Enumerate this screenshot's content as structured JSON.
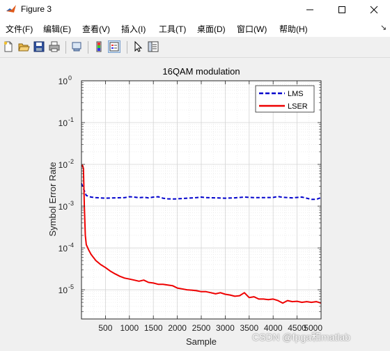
{
  "window": {
    "title": "Figure 3"
  },
  "menu": [
    {
      "label": "文件(F)"
    },
    {
      "label": "编辑(E)"
    },
    {
      "label": "查看(V)"
    },
    {
      "label": "插入(I)"
    },
    {
      "label": "工具(T)"
    },
    {
      "label": "桌面(D)"
    },
    {
      "label": "窗口(W)"
    },
    {
      "label": "帮助(H)"
    }
  ],
  "toolbar": {
    "icons": [
      "new-figure-icon",
      "open-file-icon",
      "save-icon",
      "print-icon",
      "link-icon",
      "colorbar-icon",
      "legend-icon",
      "pointer-icon",
      "property-editor-icon"
    ]
  },
  "watermark": "CSDN @fpga和matlab",
  "colors": {
    "lms": "#0000cc",
    "lser": "#ee0000"
  },
  "chart_data": {
    "type": "line",
    "title": "16QAM modulation",
    "xlabel": "Sample",
    "ylabel": "Symbol Error Rate",
    "xlim": [
      0,
      5000
    ],
    "ylim": [
      2e-06,
      1
    ],
    "yscale": "log",
    "grid": true,
    "legend_position": "top-right",
    "xticks": [
      500,
      1000,
      1500,
      2000,
      2500,
      3000,
      3500,
      4000,
      4500,
      5000
    ],
    "xtick_labels": [
      "500",
      "1000",
      "1500",
      "2000",
      "2500",
      "3000",
      "3500",
      "4000",
      "4500",
      "5000"
    ],
    "yticks": [
      1e-05,
      0.0001,
      0.001,
      0.01,
      0.1,
      1
    ],
    "ytick_labels": [
      {
        "base": "10",
        "exp": "-5"
      },
      {
        "base": "10",
        "exp": "-4"
      },
      {
        "base": "10",
        "exp": "-3"
      },
      {
        "base": "10",
        "exp": "-2"
      },
      {
        "base": "10",
        "exp": "-1"
      },
      {
        "base": "10",
        "exp": "0"
      }
    ],
    "series": [
      {
        "name": "LMS",
        "style": "dashed",
        "x": [
          0,
          50,
          100,
          200,
          300,
          500,
          700,
          900,
          1000,
          1100,
          1200,
          1300,
          1400,
          1500,
          1600,
          1700,
          1800,
          1900,
          2000,
          2200,
          2400,
          2500,
          2600,
          2800,
          3000,
          3200,
          3400,
          3600,
          3800,
          4000,
          4100,
          4200,
          4400,
          4600,
          4700,
          4800,
          4900,
          5000
        ],
        "y": [
          0.0035,
          0.0025,
          0.0018,
          0.00165,
          0.0016,
          0.00155,
          0.00158,
          0.0016,
          0.00168,
          0.00165,
          0.0016,
          0.00163,
          0.00158,
          0.00165,
          0.00168,
          0.00155,
          0.0015,
          0.00148,
          0.0015,
          0.00155,
          0.0016,
          0.00165,
          0.0016,
          0.00158,
          0.00155,
          0.00158,
          0.00165,
          0.0016,
          0.0016,
          0.00162,
          0.0017,
          0.00163,
          0.00158,
          0.00165,
          0.00155,
          0.00145,
          0.00145,
          0.0016
        ]
      },
      {
        "name": "LSER",
        "style": "solid",
        "x": [
          0,
          20,
          40,
          60,
          80,
          100,
          150,
          200,
          300,
          400,
          500,
          600,
          700,
          800,
          900,
          1000,
          1100,
          1200,
          1300,
          1400,
          1500,
          1600,
          1700,
          1800,
          1900,
          2000,
          2100,
          2200,
          2300,
          2400,
          2500,
          2600,
          2700,
          2800,
          2900,
          3000,
          3100,
          3200,
          3300,
          3400,
          3500,
          3600,
          3700,
          3800,
          3900,
          4000,
          4100,
          4200,
          4300,
          4400,
          4500,
          4600,
          4700,
          4800,
          4900,
          5000
        ],
        "y": [
          0.009,
          0.0095,
          0.008,
          0.001,
          0.0002,
          0.00012,
          9e-05,
          7e-05,
          5e-05,
          4e-05,
          3.4e-05,
          2.8e-05,
          2.4e-05,
          2.1e-05,
          1.9e-05,
          1.8e-05,
          1.7e-05,
          1.6e-05,
          1.7e-05,
          1.5e-05,
          1.45e-05,
          1.35e-05,
          1.35e-05,
          1.3e-05,
          1.25e-05,
          1.1e-05,
          1.05e-05,
          1e-05,
          9.8e-06,
          9.5e-06,
          9e-06,
          9e-06,
          8.5e-06,
          8e-06,
          8.5e-06,
          7.8e-06,
          7.5e-06,
          7e-06,
          7.2e-06,
          8.5e-06,
          6.5e-06,
          6.8e-06,
          6e-06,
          6e-06,
          5.8e-06,
          6e-06,
          5.5e-06,
          4.8e-06,
          5.5e-06,
          5.2e-06,
          5.3e-06,
          5e-06,
          5.2e-06,
          5e-06,
          5.2e-06,
          4.8e-06
        ]
      }
    ]
  }
}
